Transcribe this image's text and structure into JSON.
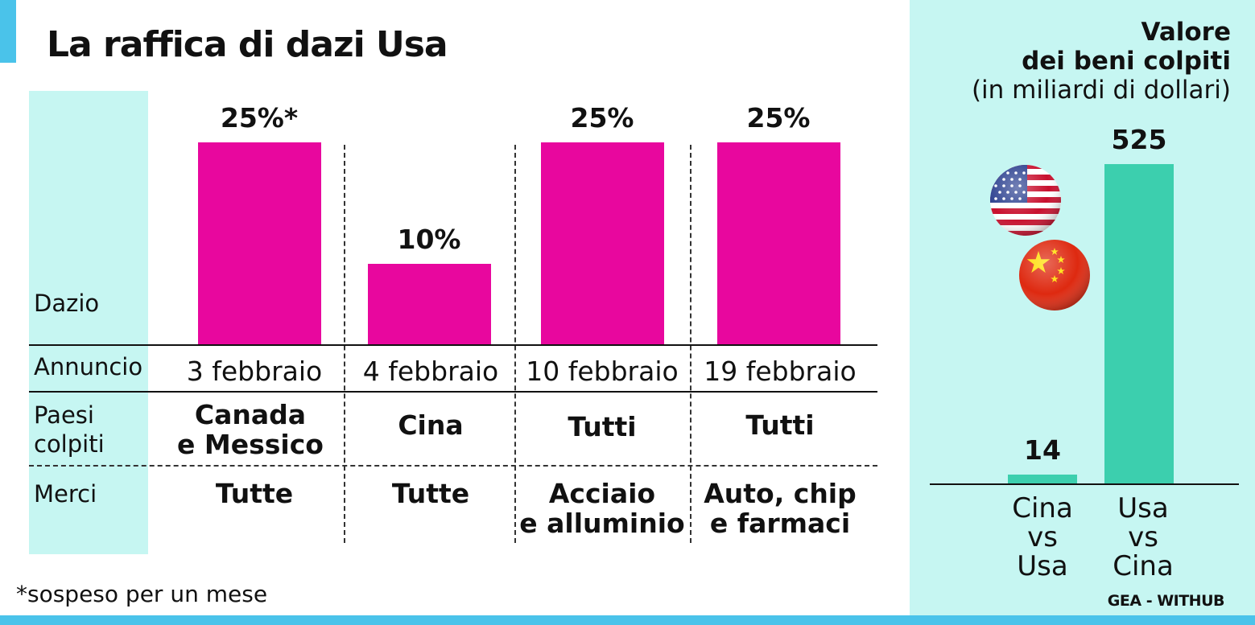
{
  "title": "La raffica di dazi Usa",
  "row_labels": {
    "dazio": "Dazio",
    "annuncio": "Annuncio",
    "paesi": [
      "Paesi",
      "colpiti"
    ],
    "merci": "Merci"
  },
  "columns": [
    {
      "value_label": "25%*",
      "date": "3 febbraio",
      "paesi": [
        "Canada",
        "e Messico"
      ],
      "merci": [
        "Tutte"
      ]
    },
    {
      "value_label": "10%",
      "date": "4 febbraio",
      "paesi": [
        "Cina"
      ],
      "merci": [
        "Tutte"
      ]
    },
    {
      "value_label": "25%",
      "date": "10 febbraio",
      "paesi": [
        "Tutti"
      ],
      "merci": [
        "Acciaio",
        "e alluminio"
      ]
    },
    {
      "value_label": "25%",
      "date": "19 febbraio",
      "paesi": [
        "Tutti"
      ],
      "merci": [
        "Auto, chip",
        "e farmaci"
      ]
    }
  ],
  "footnote": "*sospeso per un mese",
  "side": {
    "title_lines": [
      "Valore",
      "dei beni colpiti",
      "(in miliardi di dollari)"
    ],
    "credit": "GEA - WITHUB"
  },
  "colors": {
    "bar_main": "#e8079e",
    "bar_side": "#3ccfae",
    "panel_bg": "#c6f6f2",
    "accent": "#4ac3ea"
  },
  "icons": [
    "usa-flag-icon",
    "china-flag-icon"
  ],
  "chart_data": [
    {
      "type": "bar",
      "title": "La raffica di dazi Usa",
      "ylabel": "Dazio",
      "unit": "%",
      "categories": [
        "3 febbraio",
        "4 febbraio",
        "10 febbraio",
        "19 febbraio"
      ],
      "values": [
        25,
        10,
        25,
        25
      ],
      "ylim": [
        0,
        25
      ],
      "grid": false
    },
    {
      "type": "bar",
      "title": "Valore dei beni colpiti (in miliardi di dollari)",
      "categories": [
        "Cina vs Usa",
        "Usa vs Cina"
      ],
      "category_lines": [
        [
          "Cina",
          "vs",
          "Usa"
        ],
        [
          "Usa",
          "vs",
          "Cina"
        ]
      ],
      "values": [
        14,
        525
      ],
      "ylim": [
        0,
        525
      ],
      "grid": false
    }
  ]
}
